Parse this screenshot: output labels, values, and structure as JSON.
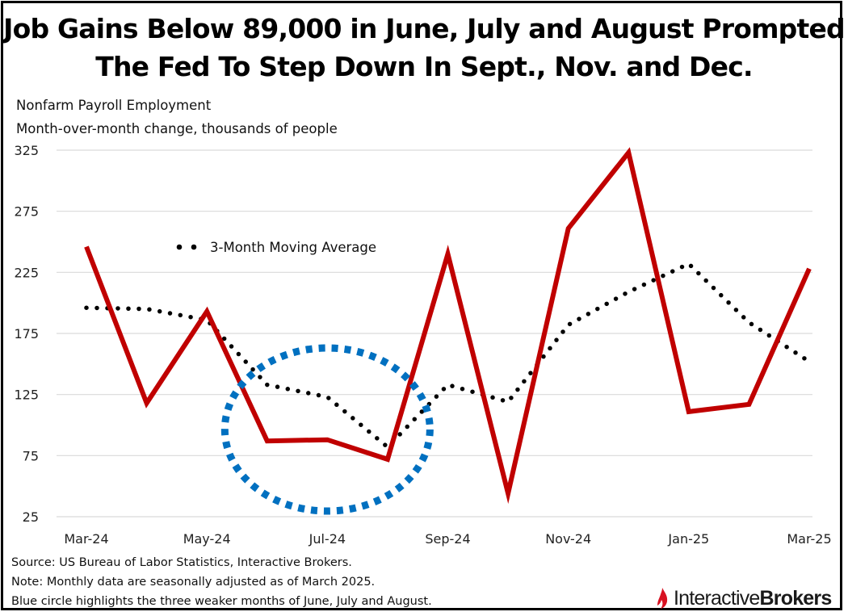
{
  "title_line1": "Job Gains Below 89,000 in June, July and August Prompted",
  "title_line2": "The Fed To Step Down In Sept., Nov. and Dec.",
  "subtitle1": "Nonfarm Payroll Employment",
  "subtitle2": "Month-over-month change, thousands of people",
  "chart_data": {
    "type": "line",
    "title": "Job Gains Below 89,000 in June, July and August Prompted The Fed To Step Down In Sept., Nov. and Dec.",
    "ylabel": "Month-over-month change, thousands of people",
    "ylim": [
      25,
      325
    ],
    "yticks": [
      25,
      75,
      125,
      175,
      225,
      275,
      325
    ],
    "x": [
      "Mar-24",
      "Apr-24",
      "May-24",
      "Jun-24",
      "Jul-24",
      "Aug-24",
      "Sep-24",
      "Oct-24",
      "Nov-24",
      "Dec-24",
      "Jan-25",
      "Feb-25",
      "Mar-25"
    ],
    "x_tick_labels": [
      "Mar-24",
      "",
      "May-24",
      "",
      "Jul-24",
      "",
      "Sep-24",
      "",
      "Nov-24",
      "",
      "Jan-25",
      "",
      "Mar-25"
    ],
    "grid": true,
    "series": [
      {
        "name": "Nonfarm Payroll Employment",
        "style": "solid",
        "color": "#c00000",
        "values": [
          246,
          118,
          193,
          87,
          88,
          72,
          240,
          44,
          261,
          323,
          111,
          117,
          228
        ]
      },
      {
        "name": "3-Month Moving Average",
        "style": "dotted",
        "color": "#000000",
        "values": [
          196,
          195,
          186,
          133,
          123,
          82,
          133,
          119,
          182,
          209,
          232,
          184,
          152
        ]
      }
    ],
    "legend_label": "3-Month Moving Average",
    "annotation": {
      "type": "dotted-ellipse",
      "color": "#0070c0",
      "around": [
        "Jun-24",
        "Jul-24",
        "Aug-24"
      ]
    }
  },
  "footnotes": {
    "source": "Source: US Bureau of Labor Statistics, Interactive Brokers.",
    "note": "Note: Monthly data are seasonally adjusted as of March 2025.",
    "highlight": "Blue circle highlights the three weaker months of June, July and August."
  },
  "logo": {
    "part1": "Interactive",
    "part2": "Brokers",
    "accent_color": "#d81222"
  },
  "colors": {
    "gridline": "#d9d9d9",
    "payroll_line": "#c00000",
    "moving_avg": "#000000",
    "circle": "#0070c0"
  }
}
